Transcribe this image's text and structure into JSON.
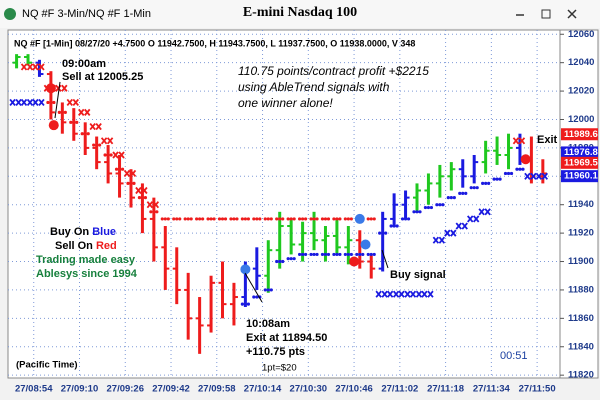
{
  "window_title": "NQ #F 3-Min/NQ #F 1-Min",
  "chart_data": {
    "type": "ohlc",
    "title": "E-mini Nasdaq 100",
    "info": "NQ #F [1-Min] 08/27/20 +4.7500 O 11942.7500, H 11943.7500, L 11937.7500, O 11938.0000, V 348",
    "xlim": [
      525,
      718
    ],
    "xticks": [
      {
        "value": 534,
        "label": "27/08:54"
      },
      {
        "value": 550,
        "label": "27/09:10"
      },
      {
        "value": 566,
        "label": "27/09:26"
      },
      {
        "value": 582,
        "label": "27/09:42"
      },
      {
        "value": 598,
        "label": "27/09:58"
      },
      {
        "value": 614,
        "label": "27/10:14"
      },
      {
        "value": 630,
        "label": "27/10:30"
      },
      {
        "value": 646,
        "label": "27/10:46"
      },
      {
        "value": 662,
        "label": "27/11:02"
      },
      {
        "value": 678,
        "label": "27/11:18"
      },
      {
        "value": 694,
        "label": "27/11:34"
      },
      {
        "value": 710,
        "label": "27/11:50"
      }
    ],
    "ylim": [
      11818,
      12063
    ],
    "yticks": [
      11820,
      11840,
      11860,
      11880,
      11900,
      11920,
      11940,
      11960,
      11980,
      12000,
      12020,
      12040,
      12060
    ],
    "grid": true,
    "x": [
      528,
      532,
      536,
      540,
      544,
      548,
      552,
      556,
      560,
      564,
      568,
      572,
      576,
      580,
      584,
      588,
      592,
      596,
      600,
      604,
      608,
      612,
      616,
      620,
      624,
      628,
      632,
      636,
      640,
      644,
      648,
      652,
      656,
      660,
      664,
      668,
      672,
      676,
      680,
      684,
      688,
      692,
      696,
      700,
      704,
      708,
      712
    ],
    "open": [
      12040,
      12044,
      12040,
      12032,
      12005,
      11998,
      11990,
      11980,
      11970,
      11962,
      11955,
      11945,
      11930,
      11910,
      11895,
      11880,
      11860,
      11855,
      11885,
      11870,
      11875,
      11895,
      11890,
      11908,
      11925,
      11912,
      11920,
      11915,
      11918,
      11910,
      11915,
      11900,
      11895,
      11930,
      11940,
      11945,
      11950,
      11955,
      11960,
      11965,
      11960,
      11970,
      11978,
      11975,
      11980,
      11972,
      11960
    ],
    "high": [
      12046,
      12046,
      12042,
      12034,
      12012,
      12008,
      11998,
      11988,
      11982,
      11975,
      11965,
      11955,
      11945,
      11925,
      11910,
      11892,
      11875,
      11890,
      11900,
      11885,
      11900,
      11910,
      11915,
      11935,
      11930,
      11928,
      11935,
      11925,
      11930,
      11925,
      11922,
      11905,
      11935,
      11948,
      11950,
      11955,
      11962,
      11968,
      11970,
      11972,
      11975,
      11985,
      11988,
      11990,
      11990,
      11988,
      11972
    ],
    "low": [
      12036,
      12038,
      12030,
      12000,
      11990,
      11985,
      11975,
      11965,
      11955,
      11945,
      11938,
      11920,
      11900,
      11880,
      11870,
      11845,
      11835,
      11850,
      11860,
      11855,
      11868,
      11880,
      11878,
      11895,
      11905,
      11900,
      11908,
      11900,
      11905,
      11898,
      11895,
      11888,
      11893,
      11925,
      11930,
      11935,
      11940,
      11945,
      11950,
      11952,
      11955,
      11962,
      11968,
      11965,
      11968,
      11955,
      11955
    ],
    "close": [
      12044,
      12040,
      12032,
      12005,
      11998,
      11990,
      11980,
      11970,
      11962,
      11955,
      11945,
      11930,
      11910,
      11895,
      11880,
      11860,
      11855,
      11885,
      11870,
      11875,
      11895,
      11890,
      11908,
      11925,
      11912,
      11920,
      11915,
      11918,
      11910,
      11915,
      11900,
      11895,
      11930,
      11940,
      11945,
      11950,
      11955,
      11960,
      11965,
      11960,
      11970,
      11978,
      11975,
      11980,
      11972,
      11960,
      11962
    ],
    "colors": [
      "#1fc81f",
      "#1fc81f",
      "#1a1ae0",
      "#ee1c1c",
      "#ee1c1c",
      "#ee1c1c",
      "#ee1c1c",
      "#ee1c1c",
      "#ee1c1c",
      "#ee1c1c",
      "#ee1c1c",
      "#ee1c1c",
      "#ee1c1c",
      "#ee1c1c",
      "#ee1c1c",
      "#ee1c1c",
      "#ee1c1c",
      "#ee1c1c",
      "#ee1c1c",
      "#ee1c1c",
      "#1a1ae0",
      "#1a1ae0",
      "#1fc81f",
      "#1fc81f",
      "#1fc81f",
      "#1fc81f",
      "#1fc81f",
      "#1fc81f",
      "#1fc81f",
      "#1fc81f",
      "#ee1c1c",
      "#ee1c1c",
      "#1a1ae0",
      "#1a1ae0",
      "#1a1ae0",
      "#1fc81f",
      "#1fc81f",
      "#1fc81f",
      "#1fc81f",
      "#1a1ae0",
      "#1a1ae0",
      "#1fc81f",
      "#1fc81f",
      "#1fc81f",
      "#1a1ae0",
      "#ee1c1c",
      "#ee1c1c"
    ],
    "stops": [
      {
        "marker": "dot",
        "color": "#ee1c1c",
        "values": [
          null,
          null,
          null,
          12012,
          12005,
          11998,
          11990,
          11982,
          11975,
          11965,
          11955,
          11945,
          11935,
          11930,
          11930,
          11930,
          11930,
          11930,
          11930,
          11930,
          11930,
          11930,
          11930,
          11930,
          11930,
          11930,
          11930,
          11930,
          11930,
          11930,
          11930,
          11930,
          null,
          null,
          null,
          null,
          null,
          null,
          null,
          null,
          null,
          null,
          null,
          null,
          null,
          null,
          null
        ]
      },
      {
        "marker": "x",
        "color": "#ee1c1c",
        "values": [
          null,
          12037,
          12037,
          12022,
          12022,
          12012,
          12005,
          11995,
          11985,
          11975,
          11962,
          11950,
          11940,
          null,
          null,
          null,
          null,
          null,
          null,
          null,
          null,
          null,
          null,
          null,
          null,
          null,
          null,
          null,
          null,
          null,
          null,
          null,
          null,
          null,
          null,
          null,
          null,
          null,
          null,
          null,
          null,
          null,
          null,
          null,
          11985,
          null,
          null
        ]
      },
      {
        "marker": "dot",
        "color": "#1a1ae0",
        "values": [
          null,
          null,
          null,
          null,
          null,
          null,
          null,
          null,
          null,
          null,
          null,
          null,
          null,
          null,
          null,
          null,
          null,
          null,
          null,
          null,
          11870,
          11875,
          11880,
          11900,
          11902,
          11905,
          11905,
          11905,
          11905,
          11905,
          11905,
          11905,
          11920,
          11925,
          11930,
          11935,
          11938,
          11940,
          11945,
          11948,
          11952,
          11955,
          11958,
          11962,
          11965,
          null,
          null
        ]
      },
      {
        "marker": "x",
        "color": "#1a1ae0",
        "values": [
          12012,
          12012,
          12012,
          null,
          null,
          null,
          null,
          null,
          null,
          null,
          null,
          null,
          null,
          null,
          null,
          null,
          null,
          null,
          null,
          null,
          null,
          null,
          null,
          null,
          null,
          null,
          null,
          null,
          null,
          null,
          null,
          null,
          11877,
          11877,
          11877,
          11877,
          11877,
          11915,
          11920,
          11925,
          11930,
          11935,
          null,
          null,
          null,
          11960,
          11960
        ]
      }
    ],
    "signals": [
      {
        "x": 540,
        "y": 12022,
        "color": "#ee1c1c"
      },
      {
        "x": 541,
        "y": 11996,
        "color": "#ee1c1c"
      },
      {
        "x": 608,
        "y": 11894.5,
        "color": "#3a7ae8"
      },
      {
        "x": 646,
        "y": 11900,
        "color": "#ee1c1c"
      },
      {
        "x": 648,
        "y": 11930,
        "color": "#3a7ae8"
      },
      {
        "x": 650,
        "y": 11912,
        "color": "#3a7ae8"
      },
      {
        "x": 706,
        "y": 11972,
        "color": "#ee1c1c"
      }
    ],
    "price_flags": [
      {
        "value": 11989.6,
        "color": "#ee1c1c"
      },
      {
        "value": 11976.8,
        "color": "#1a1ae0"
      },
      {
        "value": 11969.5,
        "color": "#ee1c1c"
      },
      {
        "value": 11960.1,
        "color": "#1a1ae0"
      }
    ],
    "annotations": {
      "sell_time": "09:00am",
      "sell_price": "Sell at 12005.25",
      "profit": [
        "110.75 points/contract profit +$2215",
        "using AbleTrend signals with",
        "one winner alone!"
      ],
      "buy_on": "Buy On",
      "blue": "Blue",
      "sell_on": "Sell On",
      "red": "Red",
      "easy": "Trading made easy",
      "since": "Ablesys since 1994",
      "exit_time": "10:08am",
      "exit_price": "Exit at 11894.50",
      "exit_pts": "+110.75 pts",
      "buy_signal": "Buy signal",
      "exit": "Exit",
      "pacific": "(Pacific Time)",
      "point_value": "1pt=$20",
      "clock": "00:51"
    }
  }
}
